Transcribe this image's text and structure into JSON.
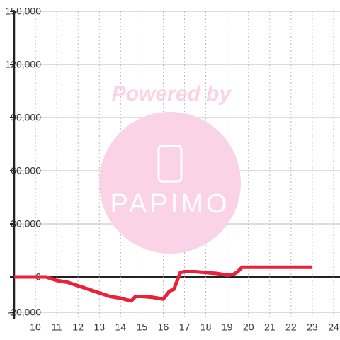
{
  "chart_data": {
    "type": "line",
    "watermark": {
      "top": "Powered by",
      "logo": "PAPIMO"
    },
    "x": [
      9,
      10.5,
      11,
      11.5,
      12,
      12.5,
      13,
      13.5,
      14,
      14.3,
      14.5,
      14.7,
      15,
      15.5,
      16,
      16.3,
      16.5,
      16.8,
      17,
      17.5,
      18,
      18.5,
      19,
      19.3,
      19.5,
      19.7,
      20,
      23
    ],
    "series": [
      {
        "color": "#e8223a",
        "values": [
          0,
          0,
          -2000,
          -3000,
          -5000,
          -7000,
          -9000,
          -11000,
          -12000,
          -13000,
          -13500,
          -11000,
          -11000,
          -11500,
          -12500,
          -8000,
          -7000,
          2500,
          3000,
          3000,
          2500,
          2000,
          1000,
          1500,
          3000,
          5500,
          5500,
          5500
        ]
      }
    ],
    "xlim": [
      9,
      24.3
    ],
    "xticks": [
      10,
      11,
      12,
      13,
      14,
      15,
      16,
      17,
      18,
      19,
      20,
      21,
      22,
      23,
      24
    ],
    "ylim": [
      -24000,
      150000
    ],
    "yticks": [
      {
        "value": -20000,
        "label": "-20,000"
      },
      0,
      {
        "value": 30000,
        "label": "30,000"
      },
      {
        "value": 60000,
        "label": "60,000"
      },
      {
        "value": 90000,
        "label": "90,000"
      },
      {
        "value": 120000,
        "label": "120,000"
      },
      {
        "value": 150000,
        "label": "150,000"
      }
    ],
    "grid": true
  }
}
